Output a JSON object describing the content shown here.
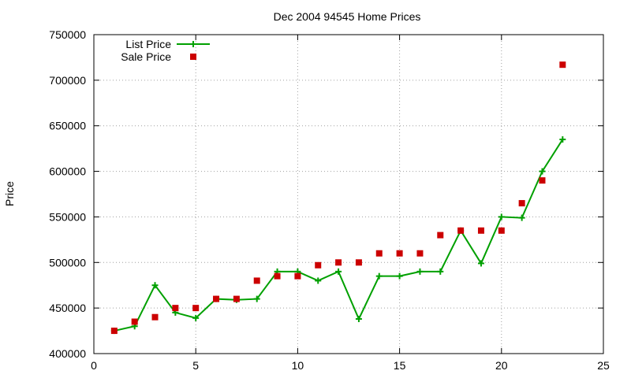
{
  "chart_data": {
    "type": "line",
    "title": "Dec 2004 94545 Home Prices",
    "xlabel": "",
    "ylabel": "Price",
    "xlim": [
      0,
      25
    ],
    "ylim": [
      400000,
      750000
    ],
    "xticks": [
      0,
      5,
      10,
      15,
      20,
      25
    ],
    "yticks": [
      400000,
      450000,
      500000,
      550000,
      600000,
      650000,
      700000,
      750000
    ],
    "xtick_labels": [
      "0",
      "5",
      "10",
      "15",
      "20",
      "25"
    ],
    "ytick_labels": [
      "400000",
      "450000",
      "500000",
      "550000",
      "600000",
      "650000",
      "700000",
      "750000"
    ],
    "grid": true,
    "legend_position": "top-left",
    "series": [
      {
        "name": "List Price",
        "style": "line-with-plus-markers",
        "color": "#00a000",
        "x": [
          1,
          2,
          3,
          4,
          5,
          6,
          7,
          8,
          9,
          10,
          11,
          12,
          13,
          14,
          15,
          16,
          17,
          18,
          19,
          20,
          21,
          22,
          23
        ],
        "y": [
          425000,
          430000,
          475000,
          445000,
          439000,
          460000,
          459000,
          460000,
          490000,
          490000,
          480000,
          490000,
          438000,
          485000,
          485000,
          490000,
          490000,
          535000,
          499000,
          550000,
          549000,
          600000,
          635000
        ]
      },
      {
        "name": "Sale Price",
        "style": "square-markers",
        "color": "#cc0000",
        "x": [
          1,
          2,
          3,
          4,
          5,
          6,
          7,
          8,
          9,
          10,
          11,
          12,
          13,
          14,
          15,
          16,
          17,
          18,
          19,
          20,
          21,
          22,
          23
        ],
        "y": [
          425000,
          435000,
          440000,
          450000,
          450000,
          460000,
          460000,
          480000,
          485000,
          485000,
          497000,
          500000,
          500000,
          510000,
          510000,
          510000,
          530000,
          535000,
          535000,
          535000,
          565000,
          590000,
          717000
        ]
      }
    ]
  }
}
